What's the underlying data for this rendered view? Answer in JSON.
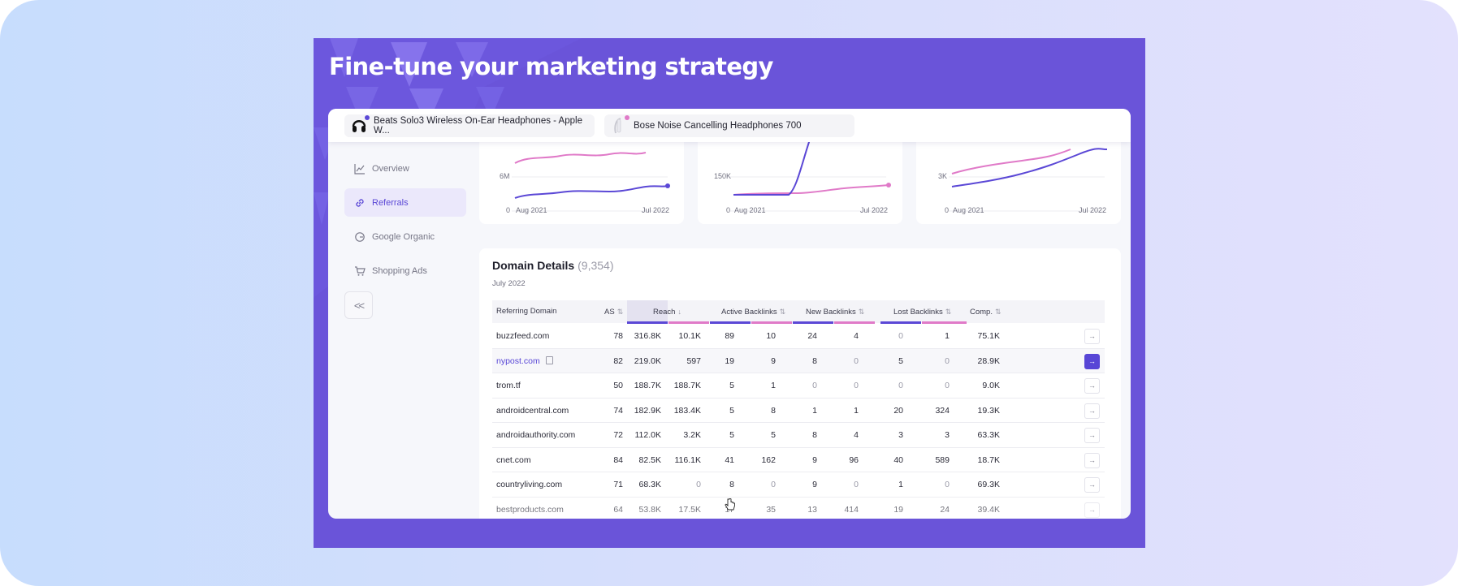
{
  "headline": "Fine-tune your marketing strategy",
  "products": [
    {
      "name": "Beats Solo3 Wireless On-Ear Headphones - Apple W...",
      "dot_color": "#5b48d6",
      "icon": "headphones-black-icon"
    },
    {
      "name": "Bose Noise Cancelling Headphones 700",
      "dot_color": "#e07ac8",
      "icon": "headphones-white-icon"
    }
  ],
  "sidebar": {
    "items": [
      {
        "label": "Overview",
        "icon": "line-chart-icon",
        "active": false
      },
      {
        "label": "Referrals",
        "icon": "link-icon",
        "active": true
      },
      {
        "label": "Google Organic",
        "icon": "google-icon",
        "active": false
      },
      {
        "label": "Shopping Ads",
        "icon": "cart-icon",
        "active": false
      }
    ],
    "collapse_label": "<<"
  },
  "mini_charts": [
    {
      "y_ticks": [
        "6M",
        "0"
      ],
      "x_start": "Aug 2021",
      "x_end": "Jul 2022"
    },
    {
      "y_ticks": [
        "150K",
        "0"
      ],
      "x_start": "Aug 2021",
      "x_end": "Jul 2022"
    },
    {
      "y_ticks": [
        "3K",
        "0"
      ],
      "x_start": "Aug 2021",
      "x_end": "Jul 2022"
    }
  ],
  "series_colors": {
    "beats": "#5b48d6",
    "bose": "#e07ac8"
  },
  "domain_details": {
    "title": "Domain Details",
    "count": "(9,354)",
    "period": "July 2022",
    "columns": {
      "domain": "Referring Domain",
      "as": "AS",
      "reach": "Reach",
      "active": "Active Backlinks",
      "new": "New Backlinks",
      "lost": "Lost Backlinks",
      "comp": "Comp."
    },
    "rows": [
      {
        "domain": "buzzfeed.com",
        "as": "78",
        "reach_a": "316.8K",
        "reach_b": "10.1K",
        "active_a": "89",
        "active_b": "10",
        "new_a": "24",
        "new_b": "4",
        "lost_a": "0",
        "lost_b": "1",
        "comp": "75.1K"
      },
      {
        "domain": "nypost.com",
        "as": "82",
        "reach_a": "219.0K",
        "reach_b": "597",
        "active_a": "19",
        "active_b": "9",
        "new_a": "8",
        "new_b": "0",
        "lost_a": "5",
        "lost_b": "0",
        "comp": "28.9K"
      },
      {
        "domain": "trom.tf",
        "as": "50",
        "reach_a": "188.7K",
        "reach_b": "188.7K",
        "active_a": "5",
        "active_b": "1",
        "new_a": "0",
        "new_b": "0",
        "lost_a": "0",
        "lost_b": "0",
        "comp": "9.0K"
      },
      {
        "domain": "androidcentral.com",
        "as": "74",
        "reach_a": "182.9K",
        "reach_b": "183.4K",
        "active_a": "5",
        "active_b": "8",
        "new_a": "1",
        "new_b": "1",
        "lost_a": "20",
        "lost_b": "324",
        "comp": "19.3K"
      },
      {
        "domain": "androidauthority.com",
        "as": "72",
        "reach_a": "112.0K",
        "reach_b": "3.2K",
        "active_a": "5",
        "active_b": "5",
        "new_a": "8",
        "new_b": "4",
        "lost_a": "3",
        "lost_b": "3",
        "comp": "63.3K"
      },
      {
        "domain": "cnet.com",
        "as": "84",
        "reach_a": "82.5K",
        "reach_b": "116.1K",
        "active_a": "41",
        "active_b": "162",
        "new_a": "9",
        "new_b": "96",
        "lost_a": "40",
        "lost_b": "589",
        "comp": "18.7K"
      },
      {
        "domain": "countryliving.com",
        "as": "71",
        "reach_a": "68.3K",
        "reach_b": "0",
        "active_a": "8",
        "active_b": "0",
        "new_a": "9",
        "new_b": "0",
        "lost_a": "1",
        "lost_b": "0",
        "comp": "69.3K"
      },
      {
        "domain": "bestproducts.com",
        "as": "64",
        "reach_a": "53.8K",
        "reach_b": "17.5K",
        "active_a": "17",
        "active_b": "35",
        "new_a": "13",
        "new_b": "414",
        "lost_a": "19",
        "lost_b": "24",
        "comp": "39.4K"
      }
    ],
    "arrow_label": "→"
  }
}
